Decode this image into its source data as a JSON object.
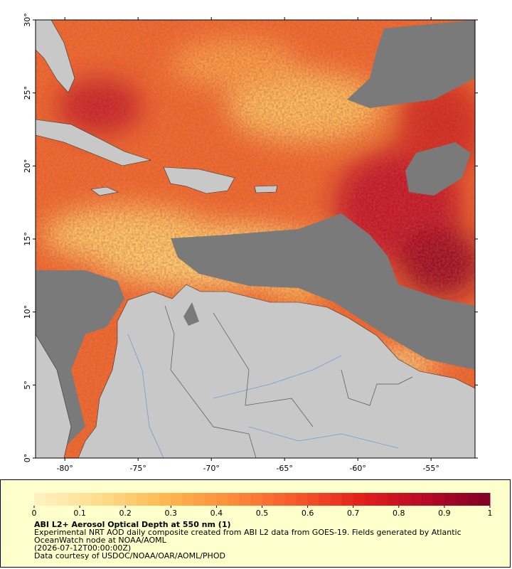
{
  "map": {
    "xlim": [
      -82,
      -52
    ],
    "ylim": [
      0,
      30
    ],
    "xticks": [
      {
        "value": -80,
        "label": "-80°"
      },
      {
        "value": -75,
        "label": "-75°"
      },
      {
        "value": -70,
        "label": "-70°"
      },
      {
        "value": -65,
        "label": "-65°"
      },
      {
        "value": -60,
        "label": "-60°"
      },
      {
        "value": -55,
        "label": "-55°"
      }
    ],
    "yticks": [
      {
        "value": 0,
        "label": "0°"
      },
      {
        "value": 5,
        "label": "5°"
      },
      {
        "value": 10,
        "label": "10°"
      },
      {
        "value": 15,
        "label": "15°"
      },
      {
        "value": 20,
        "label": "20°"
      },
      {
        "value": 25,
        "label": "25°"
      },
      {
        "value": 30,
        "label": "30°"
      }
    ]
  },
  "colorbar": {
    "range": [
      0,
      1
    ],
    "ticks": [
      0,
      0.1,
      0.2,
      0.3,
      0.4,
      0.5,
      0.6,
      0.7,
      0.8,
      0.9,
      1
    ],
    "colors": [
      "#fff3c4",
      "#fedd8c",
      "#feb852",
      "#fd8d3c",
      "#f75a2c",
      "#e3211c",
      "#b80a26",
      "#800026"
    ]
  },
  "caption": {
    "title": "ABI L2+ Aerosol Optical Depth at 550 nm (1)",
    "description": "Experimental NRT AOD daily composite created from ABI L2 data from GOES-19. Fields generated by Atlantic OceanWatch node at NOAA/AOML",
    "date": "(2026-07-12T00:00:00Z)",
    "credit": "Data courtesy of USDOC/NOAA/OAR/AOML/PHOD"
  }
}
